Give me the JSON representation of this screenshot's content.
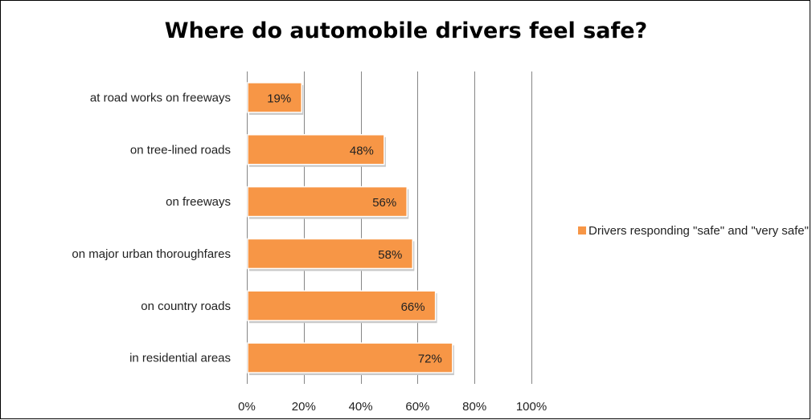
{
  "chart_data": {
    "type": "bar",
    "orientation": "horizontal",
    "title": "Where do automobile drivers feel safe?",
    "categories": [
      "at road works on freeways",
      "on tree-lined roads",
      "on freeways",
      "on major urban thoroughfares",
      "on country roads",
      "in residential areas"
    ],
    "series": [
      {
        "name": "Drivers responding \"safe\" and \"very safe\"",
        "values": [
          19,
          48,
          56,
          58,
          66,
          72
        ],
        "labels": [
          "19%",
          "48%",
          "56%",
          "58%",
          "66%",
          "72%"
        ]
      }
    ],
    "xlim": [
      0,
      100
    ],
    "ticks": [
      "0%",
      "20%",
      "40%",
      "60%",
      "80%",
      "100%"
    ],
    "grid": true,
    "legend": "right",
    "bar_color": "#f79646",
    "grid_color": "#868686"
  }
}
